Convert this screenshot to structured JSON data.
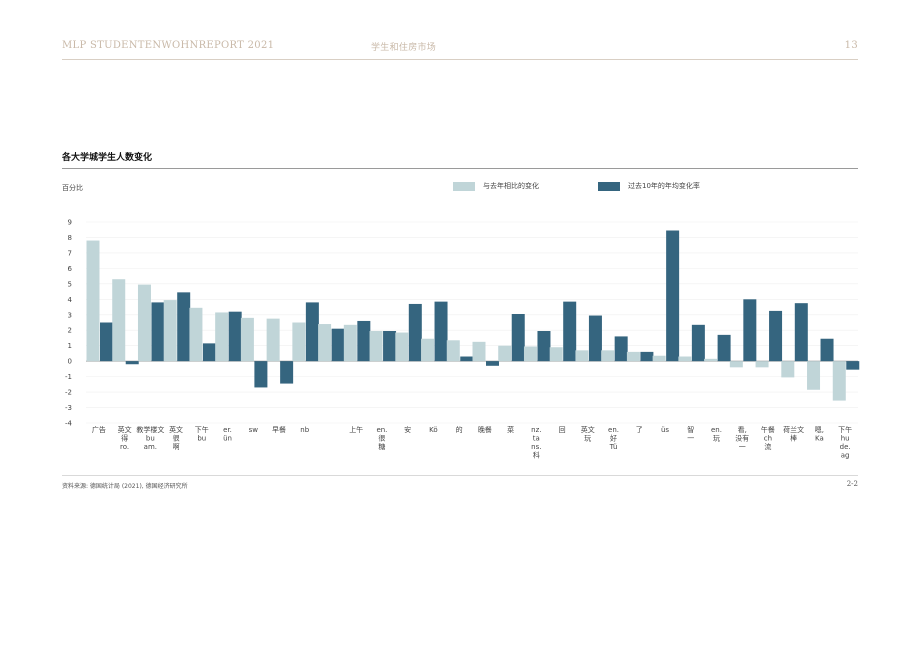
{
  "header": {
    "left": "MLP STUDENTENWOHNREPORT 2021",
    "center": "学生和住房市场",
    "page_number": "13"
  },
  "footer": {
    "source": "资料来源: 德国统计局 (2021), 德国经济研究所",
    "figure_number": "2-2"
  },
  "colors": {
    "series_1": "#c0d5d8",
    "series_2": "#35657f"
  },
  "chart_data": {
    "type": "bar",
    "title": "各大学城学生人数变化",
    "ylabel": "百分比",
    "ylim": [
      -4,
      9
    ],
    "yticks": [
      -4,
      -3,
      -2,
      -1,
      0,
      1,
      2,
      3,
      4,
      5,
      6,
      7,
      8,
      9
    ],
    "grid": true,
    "legend_position": "top-right",
    "categories": [
      "广告",
      "英文 得 ro.",
      "教学楼文 bu am.",
      "英文 很 啊",
      "下午 bu",
      "er. ün",
      "sw",
      "早餐",
      "nb",
      "",
      "上午",
      "en. 很 糖",
      "安",
      "Kö",
      "的",
      "晚餐",
      "菜",
      "nz. ta ns. 科",
      "回",
      "英文 玩",
      "en. 好 Tü",
      "了",
      "üs",
      "智 一",
      "en. 玩",
      "看, 没有 一",
      "午餐 ch 流",
      "荷兰文 棒",
      "嗯, Ka",
      "下午 hu de. ag"
    ],
    "series": [
      {
        "name": "与去年相比的变化",
        "values": [
          7.8,
          5.3,
          4.95,
          3.95,
          3.45,
          3.15,
          2.8,
          2.75,
          2.5,
          2.4,
          2.35,
          1.95,
          1.85,
          1.45,
          1.35,
          1.25,
          1.0,
          0.95,
          0.9,
          0.7,
          0.7,
          0.6,
          0.35,
          0.3,
          0.15,
          -0.4,
          -0.4,
          -1.05,
          -1.85,
          -2.55
        ]
      },
      {
        "name": "过去10年的年均变化率",
        "values": [
          2.5,
          -0.2,
          3.8,
          4.45,
          1.15,
          3.2,
          -1.7,
          -1.45,
          3.8,
          2.1,
          2.6,
          1.95,
          3.7,
          3.85,
          0.3,
          -0.3,
          3.05,
          1.95,
          3.85,
          2.95,
          1.6,
          0.6,
          8.45,
          2.35,
          1.7,
          4.0,
          3.25,
          3.75,
          1.45,
          -0.55
        ]
      }
    ]
  }
}
